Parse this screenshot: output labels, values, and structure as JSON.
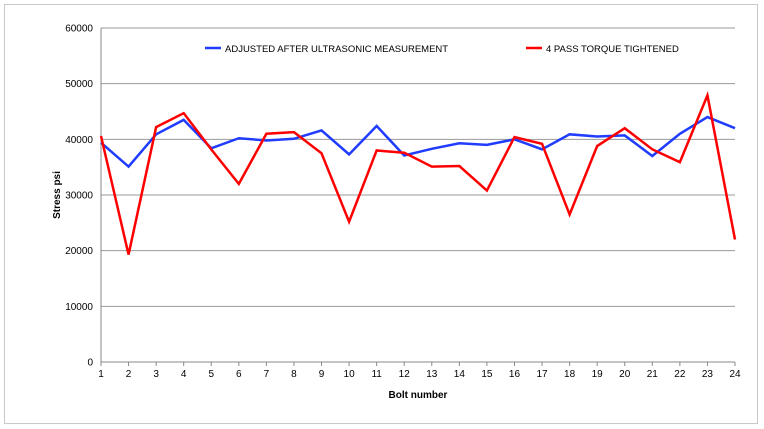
{
  "chart_data": {
    "type": "line",
    "title": "",
    "xlabel": "Bolt number",
    "ylabel": "Stress psi",
    "x": [
      1,
      2,
      3,
      4,
      5,
      6,
      7,
      8,
      9,
      10,
      11,
      12,
      13,
      14,
      15,
      16,
      17,
      18,
      19,
      20,
      21,
      22,
      23,
      24
    ],
    "ylim": [
      0,
      60000
    ],
    "yticks": [
      0,
      10000,
      20000,
      30000,
      40000,
      50000,
      60000
    ],
    "grid": true,
    "legend_position": "top",
    "series": [
      {
        "name": "ADJUSTED AFTER ULTRASONIC MEASUREMENT",
        "color": "#1f3cff",
        "values": [
          39400,
          35100,
          40900,
          43500,
          38400,
          40200,
          39800,
          40100,
          41600,
          37300,
          42400,
          37100,
          38300,
          39300,
          39000,
          40000,
          38200,
          40900,
          40500,
          40700,
          37000,
          41000,
          44000,
          42000
        ]
      },
      {
        "name": "4 PASS TORQUE TIGHTENED",
        "color": "#ff0000",
        "values": [
          40600,
          19300,
          42200,
          44700,
          38200,
          32000,
          41000,
          41300,
          37500,
          25200,
          38000,
          37600,
          35100,
          35200,
          30800,
          40400,
          39200,
          26500,
          38800,
          42000,
          38200,
          35900,
          47900,
          22000
        ]
      }
    ]
  }
}
